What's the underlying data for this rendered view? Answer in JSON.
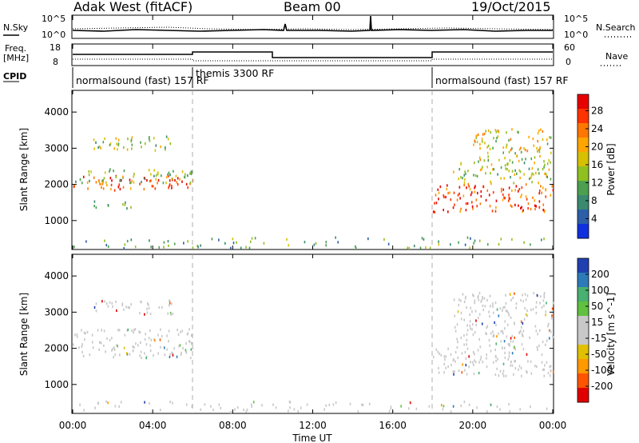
{
  "header": {
    "station": "Adak West (fitACF)",
    "beam": "Beam 00",
    "date": "19/Oct/2015"
  },
  "noise_panel": {
    "left_label": "N.Sky",
    "right_label": "N.Search",
    "left_ticks": [
      "10^5",
      "10^0"
    ],
    "right_ticks": [
      "10^5",
      "10^0"
    ]
  },
  "freq_panel": {
    "left_label_line1": "Freq.",
    "left_label_line2": "[MHz]",
    "right_label": "Nave",
    "left_ticks": [
      "18",
      "8"
    ],
    "right_ticks": [
      "60",
      "0"
    ]
  },
  "cpid": {
    "label": "CPID",
    "segments": [
      {
        "start_h": 0,
        "name": "normalsound (fast) 157 RF"
      },
      {
        "start_h": 6,
        "name": "themis 3300 RF"
      },
      {
        "start_h": 18,
        "name": "normalsound (fast) 157 RF"
      }
    ]
  },
  "x_axis": {
    "label": "Time UT",
    "ticks": [
      "00:00",
      "04:00",
      "08:00",
      "12:00",
      "16:00",
      "20:00",
      "00:00"
    ]
  },
  "chart_data": [
    {
      "type": "heatmap",
      "title": "",
      "ylabel": "Slant Range [km]",
      "yticks": [
        "1000",
        "2000",
        "3000",
        "4000"
      ],
      "ylim": [
        200,
        4600
      ],
      "xlim_hours": [
        0,
        24
      ],
      "colorbar_label": "Power [dB]",
      "colorbar_ticks": [
        "28",
        "24",
        "20",
        "16",
        "12",
        "8",
        "4"
      ],
      "colorbar_colors": [
        "#e80000",
        "#ff3300",
        "#ff7700",
        "#ffa500",
        "#d7c000",
        "#90c020",
        "#4ca050",
        "#3a8a70",
        "#2c5fa8",
        "#1030e0"
      ],
      "series": [
        {
          "h0": 0,
          "h1": 6,
          "r0": 1800,
          "r1": 2200,
          "value": 24
        },
        {
          "h0": 0.1,
          "h1": 6,
          "r0": 2000,
          "r1": 2400,
          "value": 12
        },
        {
          "h0": 1,
          "h1": 5,
          "r0": 2900,
          "r1": 3300,
          "value": 14
        },
        {
          "h0": 1,
          "h1": 3,
          "r0": 1300,
          "r1": 1500,
          "value": 6
        },
        {
          "h0": 18,
          "h1": 24,
          "r0": 1200,
          "r1": 2000,
          "value": 26
        },
        {
          "h0": 19,
          "h1": 24,
          "r0": 2000,
          "r1": 2600,
          "value": 14
        },
        {
          "h0": 20,
          "h1": 24,
          "r0": 2600,
          "r1": 3500,
          "value": 16
        },
        {
          "h0": 0,
          "h1": 24,
          "r0": 200,
          "r1": 500,
          "value": 8
        }
      ]
    },
    {
      "type": "heatmap",
      "title": "",
      "ylabel": "Slant Range [km]",
      "yticks": [
        "1000",
        "2000",
        "3000",
        "4000"
      ],
      "ylim": [
        200,
        4600
      ],
      "xlim_hours": [
        0,
        24
      ],
      "colorbar_label": "Velocity [m s^-1]",
      "colorbar_ticks": [
        "200",
        "100",
        "50",
        "15",
        "-15",
        "-50",
        "-100",
        "-200"
      ],
      "colorbar_colors": [
        "#2040b0",
        "#2c7ab8",
        "#48b070",
        "#60c040",
        "#c8c8c8",
        "#c8c8c8",
        "#e0c000",
        "#ff9900",
        "#ff5500",
        "#e00000"
      ],
      "series": [
        {
          "h0": 0,
          "h1": 6,
          "r0": 1700,
          "r1": 2500,
          "value": 0
        },
        {
          "h0": 1,
          "h1": 5,
          "r0": 2900,
          "r1": 3300,
          "value": 0
        },
        {
          "h0": 18,
          "h1": 24,
          "r0": 1200,
          "r1": 2000,
          "value": 0
        },
        {
          "h0": 19,
          "h1": 24,
          "r0": 2000,
          "r1": 3500,
          "value": 0
        },
        {
          "h0": 0,
          "h1": 24,
          "r0": 200,
          "r1": 500,
          "value": 20
        }
      ]
    }
  ]
}
